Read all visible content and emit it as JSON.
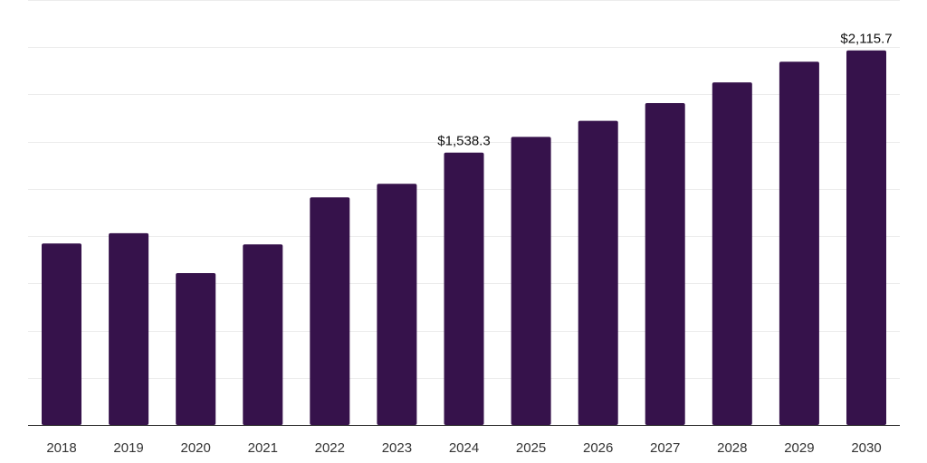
{
  "chart_data": {
    "type": "bar",
    "title": "",
    "xlabel": "",
    "ylabel": "",
    "categories": [
      "2018",
      "2019",
      "2020",
      "2021",
      "2022",
      "2023",
      "2024",
      "2025",
      "2026",
      "2027",
      "2028",
      "2029",
      "2030"
    ],
    "values": [
      1025,
      1083,
      858,
      1020,
      1286,
      1362,
      1538.3,
      1627,
      1718,
      1818,
      1935,
      2052,
      2115.7
    ],
    "data_labels": [
      {
        "index": 6,
        "text": "$1,538.3"
      },
      {
        "index": 12,
        "text": "$2,115.7"
      }
    ],
    "ylim": [
      0,
      2400
    ],
    "gridlines": [
      0,
      266.67,
      533.33,
      800,
      1066.67,
      1333.33,
      1600,
      1866.67,
      2133.33,
      2400
    ],
    "grid": true,
    "y_tick_labels_visible": false,
    "legend": "none",
    "colors": {
      "bar": "#36124b",
      "grid": "#ececec",
      "axis": "#333333",
      "tick_text": "#333333",
      "label_text": "#111111"
    }
  }
}
